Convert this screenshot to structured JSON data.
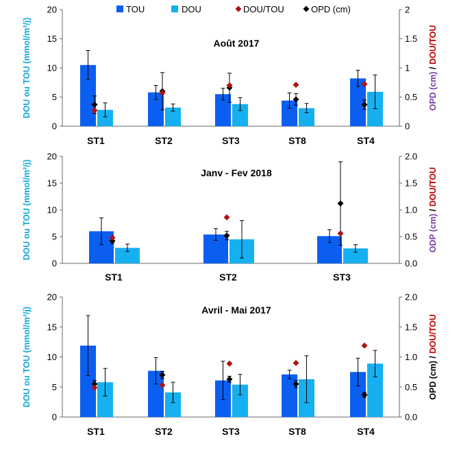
{
  "colors": {
    "tou": "#0a5ff0",
    "dou": "#16b0f0",
    "ratio": "#b01212",
    "opd": "#000000",
    "left_axis_label": "#12a6df",
    "right_axis_green": "#1a6b2e",
    "right_axis_purple": "#7a3fa3",
    "right_axis_red": "#c00000",
    "axis": "#666666"
  },
  "legend": {
    "items": [
      {
        "label": "TOU",
        "key": "tou",
        "marker": "square"
      },
      {
        "label": "DOU",
        "key": "dou",
        "marker": "square"
      },
      {
        "label": "DOU/TOU",
        "key": "ratio",
        "marker": "diamond"
      },
      {
        "label": "OPD (cm)",
        "key": "opd",
        "marker": "diamond"
      }
    ]
  },
  "chart_data": [
    {
      "type": "bar",
      "title": "Août  2017",
      "categories": [
        "ST1",
        "ST2",
        "ST3",
        "ST8",
        "ST4"
      ],
      "ylabel_left": "DOU ou TOU (mmol/m²/j)",
      "ylabel_right_parts": [
        "OPD (cm)",
        "/",
        "DOU/TOU"
      ],
      "right_axis_color_style": "green",
      "ylim_left": [
        0,
        20
      ],
      "yticks_left": [
        "0",
        "5",
        "10",
        "15",
        "20"
      ],
      "ylim_right": [
        0,
        2
      ],
      "yticks_right": [
        "0",
        "0.5",
        "1",
        "1.5",
        "2"
      ],
      "series": [
        {
          "name": "TOU",
          "key": "tou",
          "values": [
            10.5,
            5.8,
            5.5,
            4.4,
            8.2
          ],
          "errors": [
            2.5,
            1.2,
            1.0,
            1.3,
            1.4
          ]
        },
        {
          "name": "DOU",
          "key": "dou",
          "values": [
            2.8,
            3.2,
            3.8,
            3.1,
            5.9
          ],
          "errors": [
            1.2,
            0.6,
            1.1,
            0.8,
            2.9
          ]
        },
        {
          "name": "DOU/TOU",
          "key": "ratio",
          "values": [
            0.27,
            0.57,
            0.7,
            0.71,
            0.72
          ]
        },
        {
          "name": "OPD (cm)",
          "key": "opd",
          "values": [
            0.37,
            0.6,
            0.66,
            0.46,
            0.37
          ],
          "errors": [
            0.15,
            0.32,
            0.25,
            0.1,
            0.08
          ]
        }
      ]
    },
    {
      "type": "bar",
      "title": "Janv - Fev 2018",
      "categories": [
        "ST1",
        "ST2",
        "ST3"
      ],
      "ylabel_left": "DOU ou TOU (mmol/m²/j)",
      "ylabel_right_parts": [
        "ODP (cm)",
        "/",
        "DOU/TOU"
      ],
      "right_axis_color_style": "purple",
      "ylim_left": [
        0,
        20
      ],
      "yticks_left": [
        "0",
        "5",
        "10",
        "15",
        "20"
      ],
      "ylim_right": [
        0,
        2
      ],
      "yticks_right": [
        "0.0",
        "0.5",
        "1.0",
        "1.5",
        "2.0"
      ],
      "series": [
        {
          "name": "TOU",
          "key": "tou",
          "values": [
            6.0,
            5.4,
            5.1
          ],
          "errors": [
            2.5,
            1.1,
            1.2
          ]
        },
        {
          "name": "DOU",
          "key": "dou",
          "values": [
            2.9,
            4.5,
            2.8
          ],
          "errors": [
            0.7,
            3.5,
            0.7
          ]
        },
        {
          "name": "DOU/TOU",
          "key": "ratio",
          "values": [
            0.48,
            0.86,
            0.56
          ]
        },
        {
          "name": "OPD (cm)",
          "key": "opd",
          "values": [
            0.42,
            0.52,
            1.12
          ],
          "errors": [
            0.05,
            0.08,
            0.78
          ]
        }
      ]
    },
    {
      "type": "bar",
      "title": "Avril - Mai  2017",
      "categories": [
        "ST1",
        "ST2",
        "ST3",
        "ST8",
        "ST4"
      ],
      "ylabel_left": "DOU ou TOU (mmol/m²/j)",
      "ylabel_right_parts": [
        "OPD (cm) /",
        "DOU/TOU"
      ],
      "right_axis_color_style": "black",
      "ylim_left": [
        0,
        20
      ],
      "yticks_left": [
        "0",
        "5",
        "10",
        "15",
        "20"
      ],
      "ylim_right": [
        0,
        2
      ],
      "yticks_right": [
        "0.0",
        "0.5",
        "1.0",
        "1.5",
        "2.0"
      ],
      "series": [
        {
          "name": "TOU",
          "key": "tou",
          "values": [
            11.9,
            7.7,
            6.1,
            7.1,
            7.5
          ],
          "errors": [
            5.0,
            2.2,
            3.2,
            0.7,
            2.3
          ]
        },
        {
          "name": "DOU",
          "key": "dou",
          "values": [
            5.8,
            4.1,
            5.4,
            6.3,
            8.9
          ],
          "errors": [
            2.3,
            1.7,
            1.7,
            3.9,
            2.2
          ]
        },
        {
          "name": "DOU/TOU",
          "key": "ratio",
          "values": [
            0.49,
            0.53,
            0.89,
            0.9,
            1.19
          ]
        },
        {
          "name": "OPD (cm)",
          "key": "opd",
          "values": [
            0.55,
            0.7,
            0.63,
            0.55,
            0.37
          ],
          "errors": [
            0.06,
            0.06,
            0.05,
            0.06,
            0.04
          ]
        }
      ]
    }
  ]
}
